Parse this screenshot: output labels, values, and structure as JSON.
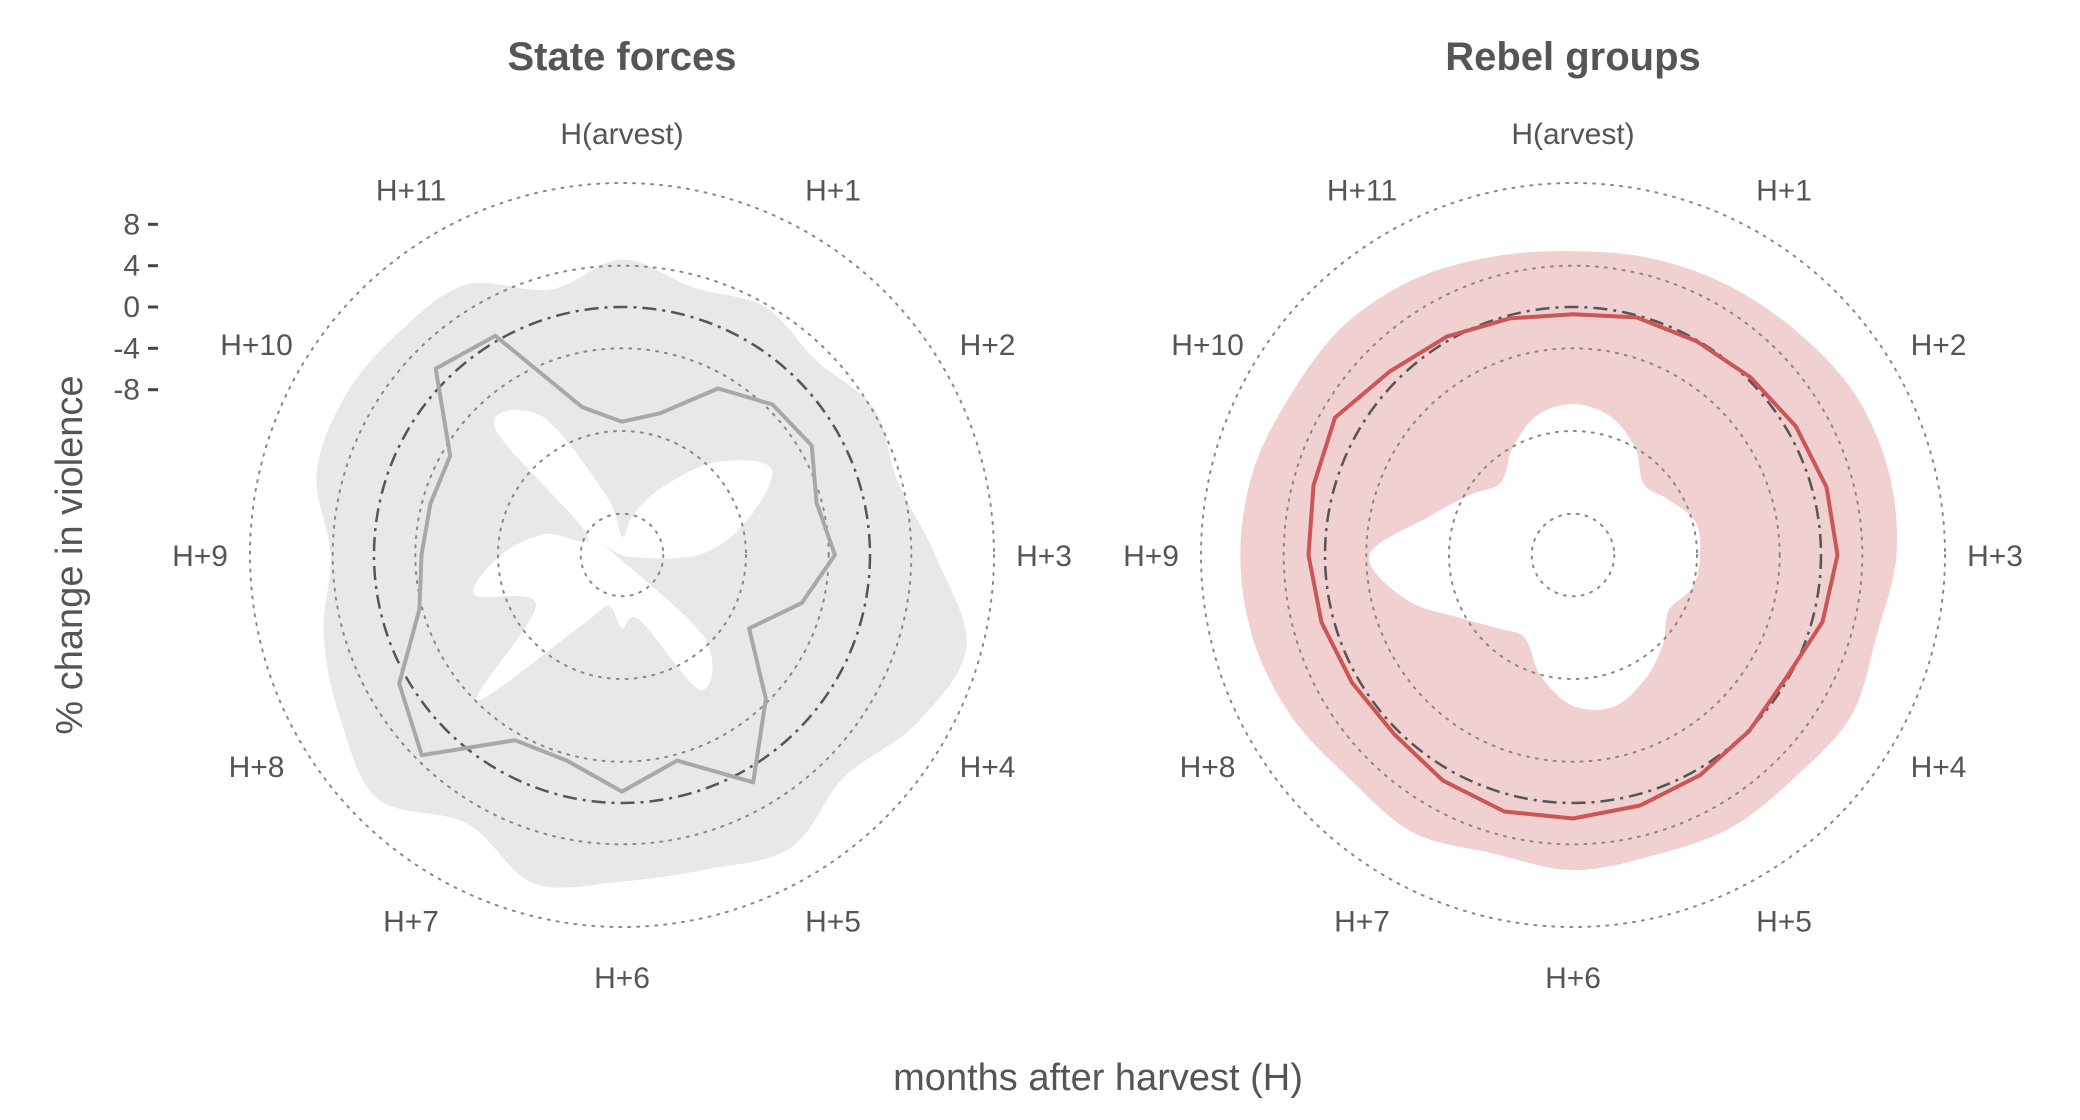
{
  "chart_data": {
    "type": "radar",
    "xlabel": "months after harvest (H)",
    "ylabel": "% change in violence",
    "radial_ticks": [
      8,
      4,
      0,
      -4,
      -8
    ],
    "radial_tick_labels": [
      "8",
      "4",
      "0",
      "-4",
      "-8"
    ],
    "rlim": [
      -24,
      12
    ],
    "grid": "dotted circles",
    "reference_line": 0,
    "categories": [
      "H(arvest)",
      "H+1",
      "H+2",
      "H+3",
      "H+4",
      "H+5",
      "H+6",
      "H+7",
      "H+8",
      "H+9",
      "H+10",
      "H+11"
    ],
    "panels": [
      {
        "title": "State forces",
        "line_color": "#a8a8a8",
        "band_color": "#e8e8e8",
        "angle_deg": [
          0,
          15,
          30,
          45,
          60,
          75,
          90,
          105,
          120,
          135,
          150,
          165,
          180,
          195,
          210,
          225,
          240,
          255,
          270,
          285,
          300,
          315,
          330,
          345
        ],
        "values": [
          -11.1,
          -9.8,
          -5.4,
          -3.4,
          -2.8,
          -4.5,
          -3.4,
          -6.0,
          -9.8,
          -4.3,
          1.4,
          -3.4,
          -1.1,
          -3.4,
          -3.3,
          3.4,
          0.9,
          -3.7,
          -4.6,
          -4.8,
          -4.8,
          1.5,
          0.5,
          -9.2
        ],
        "ci_lower": [
          -22.2,
          -20.1,
          -16.6,
          -11.3,
          -7.3,
          -11.6,
          -16.6,
          -23.5,
          -26.0,
          -12.8,
          -8.9,
          -17.5,
          -16.9,
          -18.9,
          -16.1,
          -4.1,
          -14.4,
          -9.2,
          -12.3,
          -16.2,
          -20.1,
          -6.6,
          -8.5,
          -18.0
        ],
        "ci_upper": [
          4.6,
          2.8,
          3.7,
          2.6,
          4.2,
          3.6,
          6.3,
          10.5,
          8.8,
          6.4,
          8.7,
          7.5,
          7.6,
          8.9,
          6.0,
          9.4,
          7.5,
          5.9,
          4.2,
          6.6,
          6.9,
          6.5,
          6.2,
          2.6
        ]
      },
      {
        "title": "Rebel groups",
        "line_color": "#cc5555",
        "band_color": "#f0d0d0",
        "angle_deg": [
          0,
          15,
          30,
          45,
          60,
          75,
          90,
          105,
          120,
          135,
          150,
          165,
          180,
          195,
          210,
          225,
          240,
          255,
          270,
          285,
          300,
          315,
          330,
          345
        ],
        "values": [
          -0.7,
          -0.2,
          -0.1,
          0.3,
          0.9,
          1.4,
          1.6,
          1.0,
          -0.2,
          0.1,
          0.6,
          1.1,
          1.5,
          1.7,
          1.2,
          0.5,
          0.7,
          1.2,
          1.6,
          2.0,
          2.6,
          1.1,
          0.4,
          -0.3
        ],
        "ci_lower": [
          -9.4,
          -10.1,
          -12.0,
          -14.3,
          -13.3,
          -11.7,
          -11.7,
          -12.0,
          -13.3,
          -11.7,
          -10.1,
          -8.8,
          -9.4,
          -11.9,
          -14.7,
          -13.9,
          -11.7,
          -7.3,
          -4.3,
          -9.6,
          -12.4,
          -14.1,
          -12.2,
          -10.1
        ],
        "ci_upper": [
          5.4,
          5.7,
          6.1,
          6.6,
          7.4,
          7.6,
          7.3,
          6.4,
          7.1,
          6.4,
          6.5,
          6.1,
          6.5,
          5.9,
          7.0,
          6.6,
          7.4,
          8.0,
          8.2,
          8.0,
          7.4,
          7.4,
          6.8,
          5.9
        ]
      }
    ]
  }
}
